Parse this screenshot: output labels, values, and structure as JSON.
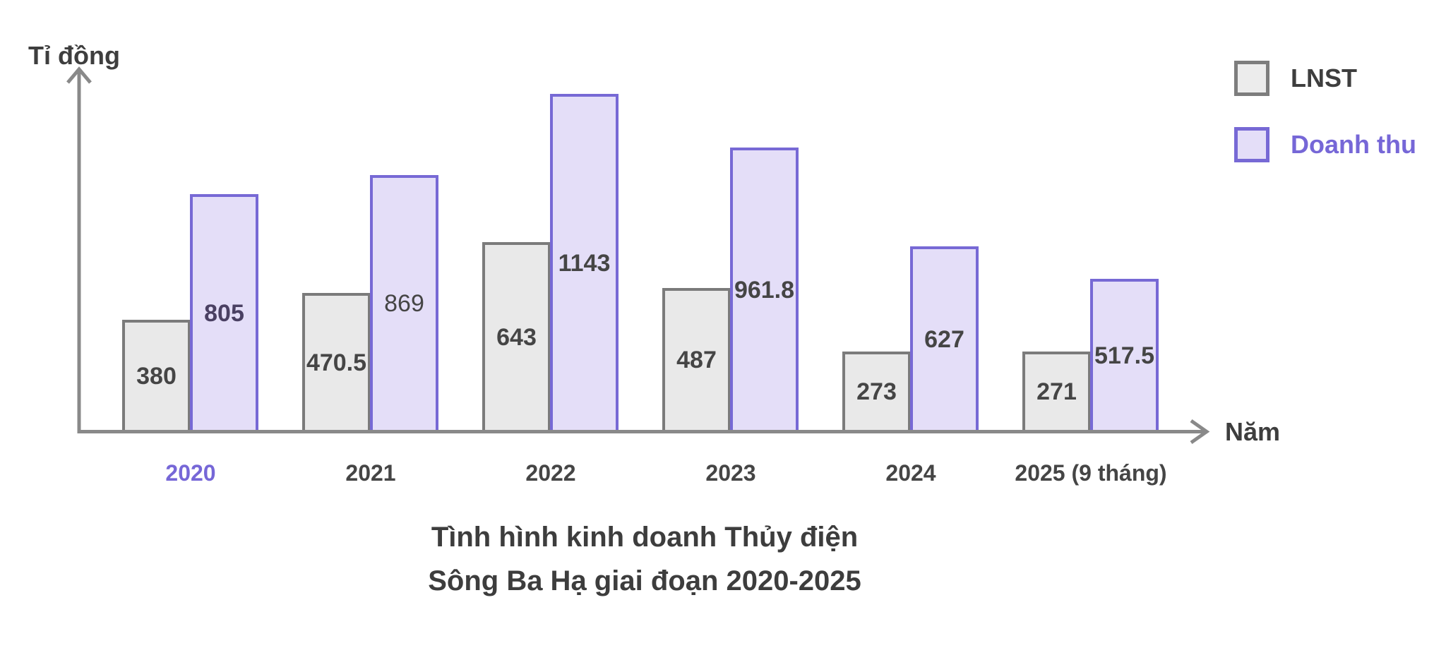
{
  "chart_data": {
    "type": "bar",
    "title": "Tình hình kinh doanh Thủy điện Sông Ba Hạ giai đoạn 2020-2025",
    "title_lines": [
      "Tình hình kinh doanh Thủy điện",
      "Sông Ba Hạ giai đoạn 2020-2025"
    ],
    "xlabel": "Năm",
    "ylabel": "Tỉ đồng",
    "categories": [
      "2020",
      "2021",
      "2022",
      "2023",
      "2024",
      "2025 (9 tháng)"
    ],
    "highlighted_category": "2020",
    "series": [
      {
        "name": "LNST",
        "values": [
          380,
          470.5,
          643,
          487,
          273,
          271
        ],
        "fill": "#e9e9e9",
        "border": "#7b7b7b",
        "value_color": "#454545"
      },
      {
        "name": "Doanh thu",
        "values": [
          805,
          869,
          1143,
          961.8,
          627,
          517.5
        ],
        "fill": "#e4def8",
        "border": "#7769d5",
        "value_color": "#454545",
        "value_overrides": [
          {
            "index": 0,
            "color": "#4a4063"
          },
          {
            "index": 1,
            "weight": 400
          }
        ]
      }
    ],
    "ylim": [
      0,
      1220
    ],
    "grid": false,
    "axis_arrows": true,
    "value_labels_inside_bars": true,
    "legend_position": "top-right"
  },
  "legend": {
    "items": [
      {
        "label": "LNST",
        "fill": "#ececec",
        "border": "#7d7d7d",
        "text_color": "#3e3e3e"
      },
      {
        "label": "Doanh thu",
        "fill": "#e4def8",
        "border": "#7769d5",
        "text_color": "#7667d7"
      }
    ]
  },
  "colors": {
    "background": "#ffffff",
    "axis": "#898989",
    "text_dark": "#3e3e3e",
    "accent_purple": "#7667d7"
  }
}
